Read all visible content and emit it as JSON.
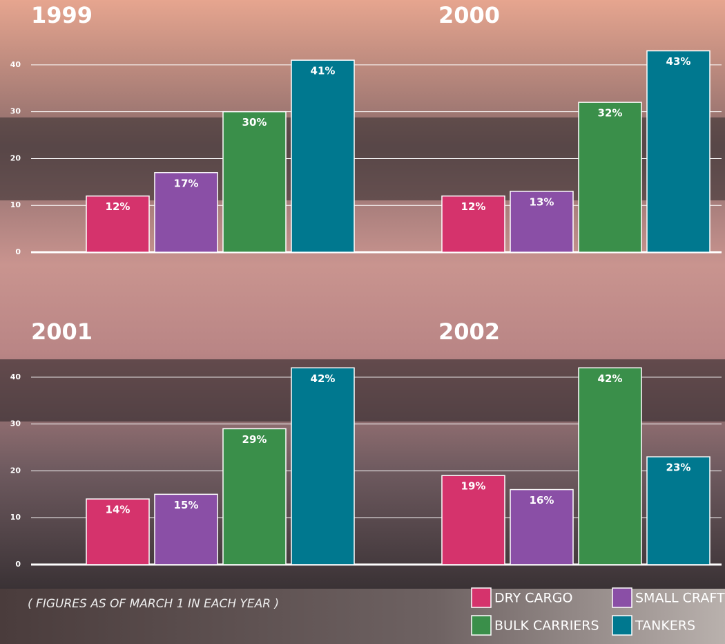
{
  "chart_data": [
    {
      "type": "bar",
      "title": "1999",
      "values": [
        12,
        17,
        30,
        41
      ],
      "value_labels": [
        "12%",
        "17%",
        "30%",
        "41%"
      ],
      "ylim": [
        0,
        45
      ],
      "yticks": [
        0,
        10,
        20,
        30,
        40
      ]
    },
    {
      "type": "bar",
      "title": "2000",
      "values": [
        12,
        13,
        32,
        43
      ],
      "value_labels": [
        "12%",
        "13%",
        "32%",
        "43%"
      ],
      "ylim": [
        0,
        45
      ],
      "yticks": [
        0,
        10,
        20,
        30,
        40
      ]
    },
    {
      "type": "bar",
      "title": "2001",
      "values": [
        14,
        15,
        29,
        42
      ],
      "value_labels": [
        "14%",
        "15%",
        "29%",
        "42%"
      ],
      "ylim": [
        0,
        45
      ],
      "yticks": [
        0,
        10,
        20,
        30,
        40
      ]
    },
    {
      "type": "bar",
      "title": "2002",
      "values": [
        19,
        16,
        42,
        23
      ],
      "value_labels": [
        "19%",
        "16%",
        "42%",
        "23%"
      ],
      "ylim": [
        0,
        45
      ],
      "yticks": [
        0,
        10,
        20,
        30,
        40
      ]
    }
  ],
  "legend": [
    {
      "name": "DRY CARGO",
      "color": "#d5336c"
    },
    {
      "name": "SMALL CRAFT",
      "color": "#8a4fa6"
    },
    {
      "name": "BULK CARRIERS",
      "color": "#3a8f4a"
    },
    {
      "name": "TANKERS",
      "color": "#00788f"
    }
  ],
  "note": "( FIGURES AS OF MARCH 1 IN EACH YEAR )"
}
